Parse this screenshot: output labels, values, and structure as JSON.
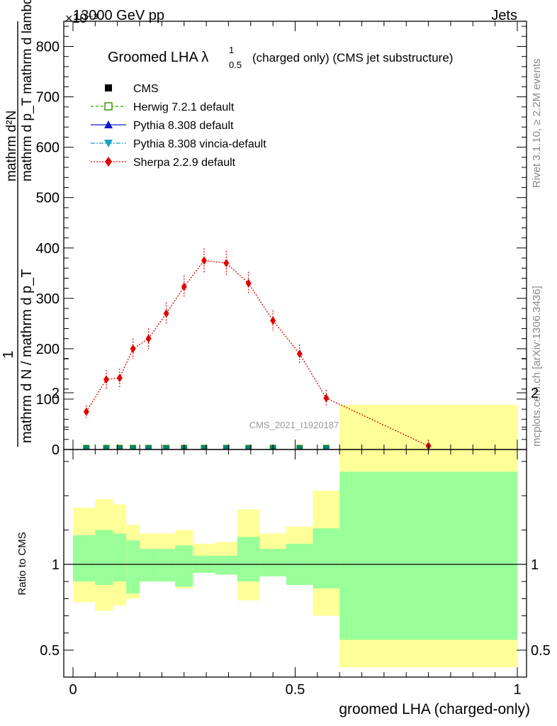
{
  "header": {
    "energy": "13000 GeV pp",
    "process": "Jets",
    "exponent": "×10⁻³"
  },
  "side": {
    "rivet": "Rivet 3.1.10, ≥ 2.2M events",
    "mcplots": "mcplots.cern.ch [arXiv:1306.3436]"
  },
  "chart_data": {
    "type": "line",
    "title": "Groomed LHA λ",
    "title_sup": "1",
    "title_sub": "0.5",
    "title_suffix": "(charged only) (CMS jet substructure)",
    "analysis_label": "CMS_2021_I1920187",
    "ylabel_main_num": "1",
    "ylabel_main_den": "mathrm d N / mathrm d p_T",
    "ylabel_main_num2": "mathrm d²N",
    "ylabel_main_den2": "mathrm d p_T mathrm d lambda",
    "ylabel_ratio": "Ratio to CMS",
    "xlabel": "groomed LHA (charged-only)",
    "ylim_main": [
      0,
      850
    ],
    "yticks_main": [
      "0",
      "100",
      "200",
      "300",
      "400",
      "500",
      "600",
      "700",
      "800"
    ],
    "ylim_ratio": [
      0.4,
      2.3
    ],
    "yticks_ratio": [
      "0.5",
      "1",
      "2"
    ],
    "xlim": [
      0,
      1
    ],
    "xticks": [
      "0",
      "0.5",
      "1"
    ],
    "bin_edges": [
      0,
      0.05,
      0.09,
      0.12,
      0.15,
      0.19,
      0.23,
      0.27,
      0.32,
      0.37,
      0.42,
      0.48,
      0.54,
      0.6,
      1.0
    ],
    "bin_centers": [
      0.03,
      0.075,
      0.105,
      0.135,
      0.17,
      0.21,
      0.25,
      0.295,
      0.345,
      0.395,
      0.45,
      0.51,
      0.57,
      0.8
    ],
    "legend": [
      {
        "name": "CMS",
        "color": "#000000",
        "marker": "square"
      },
      {
        "name": "Herwig 7.2.1 default",
        "color": "#3a9a00",
        "marker": "open-square"
      },
      {
        "name": "Pythia 8.308 default",
        "color": "#0a1ac8",
        "marker": "triangle-up"
      },
      {
        "name": "Pythia 8.308 vincia-default",
        "color": "#1aa0c8",
        "marker": "triangle-down"
      },
      {
        "name": "Sherpa 2.2.9 default",
        "color": "#e00000",
        "marker": "diamond"
      }
    ],
    "series": [
      {
        "name": "Sherpa 2.2.9 default",
        "values": [
          75,
          139,
          142,
          200,
          220,
          270,
          323,
          375,
          370,
          330,
          256,
          190,
          102,
          7
        ]
      },
      {
        "name": "CMS",
        "values": [
          0,
          0,
          0,
          0,
          0,
          0,
          0,
          0,
          0,
          0,
          0,
          0,
          0,
          0
        ]
      },
      {
        "name": "Herwig 7.2.1 default",
        "values": [
          0,
          0,
          0,
          0,
          0,
          0,
          0,
          0,
          0,
          0,
          0,
          0,
          0,
          0
        ]
      }
    ],
    "sherpa_err": [
      4,
      10,
      10,
      12,
      12,
      14,
      14,
      16,
      16,
      14,
      12,
      10,
      8,
      4
    ],
    "ratio_band_inner_up": [
      1.17,
      1.2,
      1.18,
      1.14,
      1.09,
      1.09,
      1.11,
      1.05,
      1.05,
      1.16,
      1.09,
      1.12,
      1.21,
      1.54
    ],
    "ratio_band_inner_dn": [
      0.9,
      0.88,
      0.9,
      0.83,
      0.9,
      0.9,
      0.87,
      0.95,
      0.94,
      0.9,
      0.93,
      0.88,
      0.86,
      0.56
    ],
    "ratio_band_outer_up": [
      1.33,
      1.38,
      1.35,
      1.23,
      1.18,
      1.18,
      1.2,
      1.12,
      1.13,
      1.32,
      1.18,
      1.22,
      1.43,
      1.93
    ],
    "ratio_band_outer_dn": [
      0.78,
      0.73,
      0.76,
      0.8,
      0.9,
      0.9,
      0.86,
      0.95,
      0.94,
      0.79,
      0.93,
      0.88,
      0.7,
      0.4
    ]
  }
}
